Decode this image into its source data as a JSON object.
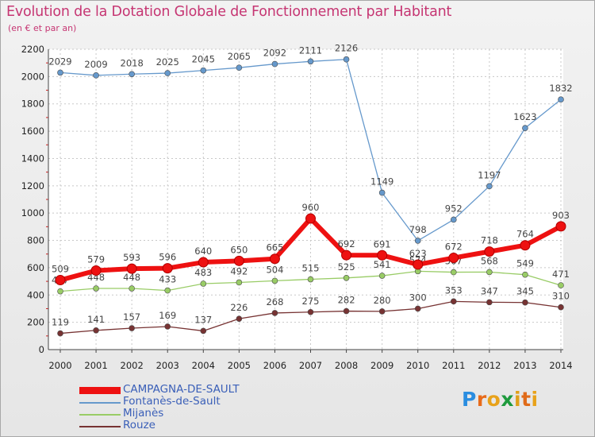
{
  "title": "Evolution de la Dotation Globale de Fonctionnement par Habitant",
  "subtitle": "(en € et par an)",
  "logo": {
    "text": [
      "P",
      "r",
      "o",
      "x",
      "i",
      "t",
      "i"
    ],
    "colors": [
      "#2a8de0",
      "#e86b1a",
      "#e8a21a",
      "#1e9a3d",
      "#e0a01a",
      "#e06b1a",
      "#e8a21a"
    ]
  },
  "chart_data": {
    "type": "line",
    "title": "Evolution de la Dotation Globale de Fonctionnement par Habitant",
    "subtitle": "(en € et par an)",
    "xlabel": "",
    "ylabel": "",
    "ylim": [
      0,
      2200
    ],
    "yticks": [
      0,
      200,
      400,
      600,
      800,
      1000,
      1200,
      1400,
      1600,
      1800,
      2000,
      2200
    ],
    "grid": true,
    "x": [
      "2000",
      "2001",
      "2002",
      "2003",
      "2004",
      "2005",
      "2006",
      "2007",
      "2008",
      "2009",
      "2010",
      "2011",
      "2012",
      "2013",
      "2014"
    ],
    "series": [
      {
        "name": "CAMPAGNA-DE-SAULT",
        "color": "#ee1111",
        "values": [
          509,
          579,
          593,
          596,
          640,
          650,
          665,
          960,
          692,
          691,
          623,
          672,
          718,
          764,
          903
        ]
      },
      {
        "name": "Fontanès-de-Sault",
        "color": "#6699cc",
        "values": [
          2029,
          2009,
          2018,
          2025,
          2045,
          2065,
          2092,
          2111,
          2126,
          1149,
          798,
          952,
          1197,
          1623,
          1832
        ]
      },
      {
        "name": "Mijanès",
        "color": "#99cc66",
        "values": [
          427,
          448,
          448,
          433,
          483,
          492,
          504,
          515,
          525,
          541,
          574,
          567,
          568,
          549,
          471
        ]
      },
      {
        "name": "Rouze",
        "color": "#773333",
        "values": [
          119,
          141,
          157,
          169,
          137,
          226,
          268,
          275,
          282,
          280,
          300,
          353,
          347,
          345,
          310
        ]
      }
    ]
  }
}
